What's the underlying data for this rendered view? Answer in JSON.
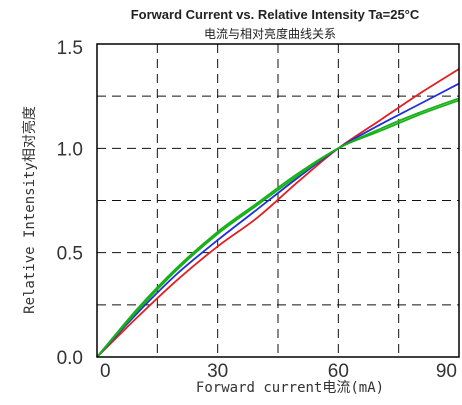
{
  "chart_data": {
    "type": "line",
    "title": "Forward Current vs. Relative Intensity  Ta=25°C",
    "subtitle": "电流与相对亮度曲线关系",
    "xlabel": "Forward current电流(mA)",
    "ylabel": "Relative Intensity相对亮度",
    "xlim": [
      0,
      90
    ],
    "ylim": [
      0,
      1.5
    ],
    "x_ticks": [
      0,
      30,
      60,
      90
    ],
    "x_tick_labels": [
      "0",
      "30",
      "60",
      "90"
    ],
    "y_ticks": [
      0,
      0.5,
      1.0,
      1.5
    ],
    "y_tick_labels": [
      "0.0",
      "0.5",
      "1.0",
      "1.5"
    ],
    "grid": true,
    "grid_style": "dashed",
    "legend": "none",
    "x": [
      0,
      10,
      20,
      30,
      40,
      50,
      60,
      70,
      80,
      90
    ],
    "series": [
      {
        "color": "#e02020",
        "values": [
          0,
          0.19,
          0.37,
          0.53,
          0.67,
          0.84,
          1.0,
          1.13,
          1.26,
          1.38
        ]
      },
      {
        "color": "#1f2fe0",
        "values": [
          0,
          0.21,
          0.4,
          0.56,
          0.71,
          0.86,
          1.0,
          1.11,
          1.21,
          1.31
        ]
      },
      {
        "color": "#18b018",
        "values": [
          0,
          0.23,
          0.43,
          0.6,
          0.74,
          0.88,
          1.0,
          1.09,
          1.17,
          1.24
        ]
      },
      {
        "color": "#18b018",
        "values": [
          0,
          0.22,
          0.42,
          0.59,
          0.73,
          0.87,
          1.0,
          1.08,
          1.16,
          1.23
        ]
      }
    ]
  }
}
